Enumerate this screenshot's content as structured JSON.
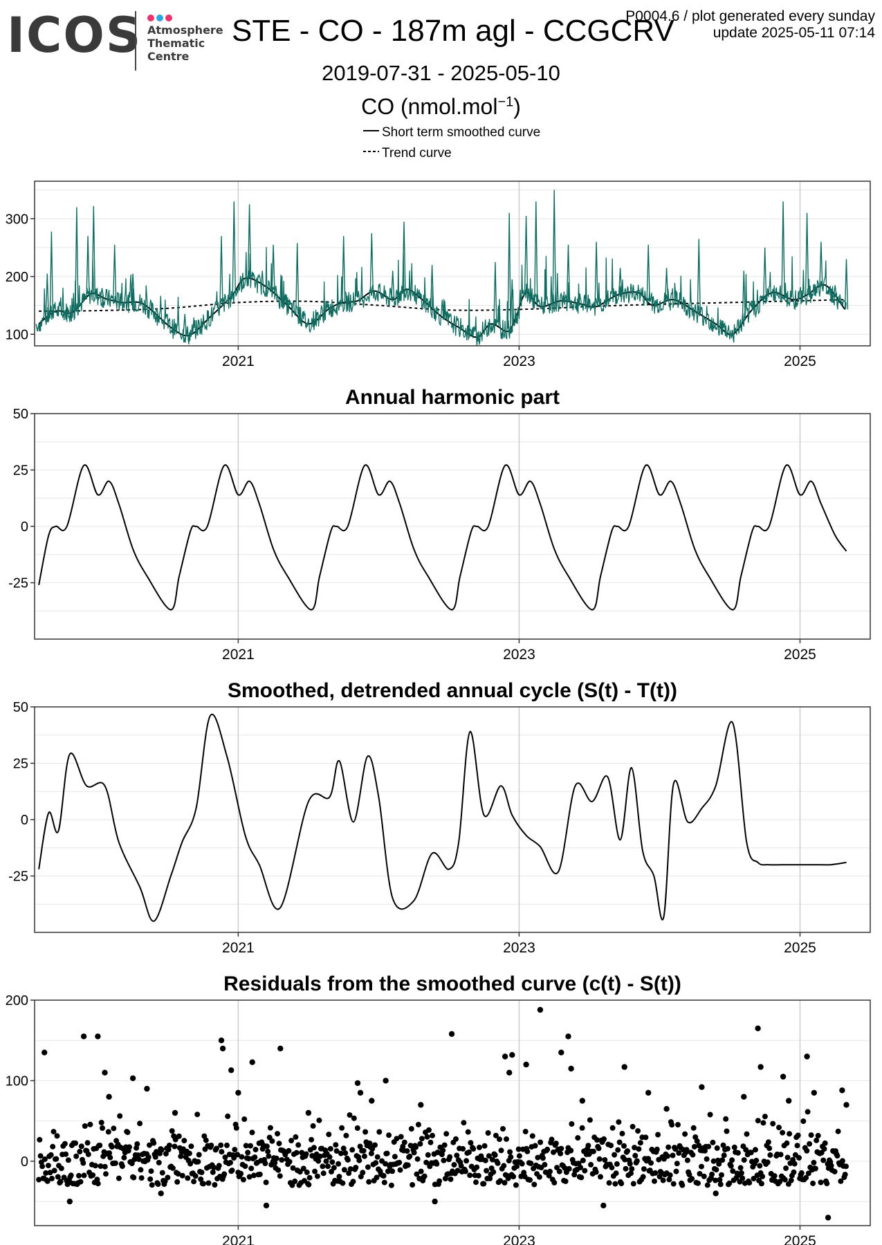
{
  "logo": {
    "word": "ICOS",
    "line1": "Atmosphere",
    "line2": "Thematic",
    "line3": "Centre",
    "dot_colors": [
      "#e8336d",
      "#2aa6e0",
      "#e8336d"
    ]
  },
  "header": {
    "title": "STE - CO - 187m agl - CCGCRV",
    "note_line1": "P0004.6 / plot generated every sunday",
    "note_line2": "update  2025-05-11 07:14",
    "date_range": "2019-07-31 - 2025-05-10",
    "unit_base": "CO (nmol.mol",
    "unit_exp": "−1",
    "unit_close": ")"
  },
  "legend": {
    "solid_label": "Short term smoothed curve",
    "dashed_label": "Trend curve"
  },
  "colors": {
    "observations": "#0e6b5f",
    "curves": "#000000",
    "grid": "#e6e6e6",
    "grid_major": "#cccccc",
    "frame": "#333333"
  },
  "chart_data": [
    {
      "type": "line",
      "title": "",
      "xlim": [
        2019.55,
        2025.5
      ],
      "ylim": [
        80,
        365
      ],
      "yticks": [
        100,
        200,
        300
      ],
      "ytick_labels": [
        "100",
        "200",
        "300"
      ],
      "xticks": [
        2021,
        2023,
        2025
      ],
      "xtick_labels": [
        "2021",
        "2023",
        "2025"
      ],
      "grid": true,
      "series": [
        {
          "name": "Short term smoothed curve",
          "style": "solid",
          "x": [
            2019.58,
            2019.7,
            2019.82,
            2019.95,
            2020.05,
            2020.17,
            2020.3,
            2020.4,
            2020.52,
            2020.65,
            2020.8,
            2020.95,
            2021.05,
            2021.2,
            2021.35,
            2021.5,
            2021.65,
            2021.75,
            2021.85,
            2021.97,
            2022.1,
            2022.2,
            2022.3,
            2022.45,
            2022.57,
            2022.7,
            2022.8,
            2022.92,
            2022.98,
            2023.05,
            2023.15,
            2023.3,
            2023.45,
            2023.55,
            2023.7,
            2023.85,
            2023.95,
            2024.1,
            2024.25,
            2024.4,
            2024.52,
            2024.65,
            2024.8,
            2024.95,
            2025.05,
            2025.18,
            2025.32
          ],
          "y": [
            118,
            140,
            138,
            170,
            162,
            155,
            155,
            138,
            112,
            98,
            130,
            165,
            197,
            182,
            150,
            118,
            145,
            155,
            158,
            175,
            160,
            178,
            162,
            130,
            112,
            95,
            118,
            105,
            132,
            172,
            148,
            158,
            152,
            148,
            168,
            172,
            150,
            160,
            140,
            118,
            100,
            140,
            172,
            160,
            168,
            185,
            143
          ]
        },
        {
          "name": "Trend curve",
          "style": "dashed",
          "x": [
            2019.58,
            2020.0,
            2020.5,
            2021.0,
            2021.5,
            2022.0,
            2022.5,
            2023.0,
            2023.5,
            2024.0,
            2024.5,
            2025.0,
            2025.32
          ],
          "y": [
            140,
            141,
            145,
            155,
            157,
            150,
            142,
            143,
            148,
            152,
            155,
            158,
            160
          ]
        },
        {
          "name": "",
          "style": "observations",
          "x": [
            2019.57,
            2019.64,
            2019.67,
            2019.75,
            2019.85,
            2019.93,
            2019.97,
            2020.03,
            2020.12,
            2020.25,
            2020.42,
            2020.62,
            2020.88,
            2020.97,
            2021.03,
            2021.08,
            2021.25,
            2021.42,
            2021.55,
            2021.75,
            2021.95,
            2022.1,
            2022.18,
            2022.38,
            2022.47,
            2022.65,
            2022.83,
            2022.93,
            2022.95,
            2023.05,
            2023.12,
            2023.25,
            2023.35,
            2023.55,
            2023.72,
            2023.92,
            2024.05,
            2024.28,
            2024.6,
            2024.75,
            2024.88,
            2025.05,
            2025.15,
            2025.25,
            2025.33
          ],
          "y": [
            105,
            205,
            278,
            130,
            320,
            270,
            322,
            180,
            255,
            205,
            145,
            135,
            270,
            330,
            178,
            325,
            255,
            258,
            120,
            270,
            275,
            210,
            295,
            220,
            158,
            98,
            225,
            310,
            195,
            305,
            330,
            350,
            255,
            260,
            215,
            255,
            215,
            265,
            210,
            250,
            330,
            310,
            260,
            185,
            230
          ]
        }
      ]
    },
    {
      "type": "line",
      "title": "Annual harmonic part",
      "xlim": [
        2019.55,
        2025.5
      ],
      "ylim": [
        -50,
        50
      ],
      "yticks": [
        -25,
        0,
        25,
        50
      ],
      "ytick_labels": [
        "-25",
        "0",
        "25",
        "50"
      ],
      "xticks": [
        2021,
        2023,
        2025
      ],
      "xtick_labels": [
        "2021",
        "2023",
        "2025"
      ],
      "grid": true,
      "series": [
        {
          "name": "",
          "style": "solid",
          "x": [
            2019.58,
            2019.65,
            2019.7,
            2019.78,
            2019.9,
            2020.0,
            2020.08,
            2020.15,
            2020.25,
            2020.35,
            2020.52,
            2020.58,
            2020.66,
            2020.7,
            2020.78,
            2020.9,
            2021.0,
            2021.08,
            2021.15,
            2021.25,
            2021.35,
            2021.52,
            2021.58,
            2021.66,
            2021.7,
            2021.78,
            2021.9,
            2022.0,
            2022.08,
            2022.15,
            2022.25,
            2022.35,
            2022.52,
            2022.58,
            2022.66,
            2022.7,
            2022.78,
            2022.9,
            2023.0,
            2023.08,
            2023.15,
            2023.25,
            2023.35,
            2023.52,
            2023.58,
            2023.66,
            2023.7,
            2023.78,
            2023.9,
            2024.0,
            2024.08,
            2024.15,
            2024.25,
            2024.35,
            2024.52,
            2024.58,
            2024.66,
            2024.7,
            2024.78,
            2024.9,
            2025.0,
            2025.08,
            2025.15,
            2025.25,
            2025.33
          ],
          "y": [
            -26,
            -4,
            0,
            0,
            27,
            14,
            20,
            10,
            -10,
            -22,
            -37,
            -22,
            -2,
            0,
            0,
            27,
            14,
            20,
            10,
            -10,
            -22,
            -37,
            -22,
            -2,
            0,
            0,
            27,
            14,
            20,
            10,
            -10,
            -22,
            -37,
            -22,
            -2,
            0,
            0,
            27,
            14,
            20,
            10,
            -10,
            -22,
            -37,
            -22,
            -2,
            0,
            0,
            27,
            14,
            20,
            10,
            -10,
            -22,
            -37,
            -22,
            -2,
            0,
            0,
            27,
            14,
            20,
            10,
            -4,
            -11
          ]
        }
      ]
    },
    {
      "type": "line",
      "title": "Smoothed, detrended annual cycle (S(t) - T(t))",
      "xlim": [
        2019.55,
        2025.5
      ],
      "ylim": [
        -50,
        50
      ],
      "yticks": [
        -25,
        0,
        25,
        50
      ],
      "ytick_labels": [
        "-25",
        "0",
        "25",
        "50"
      ],
      "xticks": [
        2021,
        2023,
        2025
      ],
      "xtick_labels": [
        "2021",
        "2023",
        "2025"
      ],
      "grid": true,
      "series": [
        {
          "name": "",
          "style": "solid",
          "x": [
            2019.58,
            2019.65,
            2019.72,
            2019.8,
            2019.92,
            2020.05,
            2020.15,
            2020.3,
            2020.4,
            2020.52,
            2020.6,
            2020.7,
            2020.8,
            2020.92,
            2021.05,
            2021.15,
            2021.3,
            2021.5,
            2021.65,
            2021.72,
            2021.82,
            2021.92,
            2022.0,
            2022.1,
            2022.25,
            2022.38,
            2022.5,
            2022.57,
            2022.65,
            2022.75,
            2022.87,
            2022.95,
            2023.05,
            2023.15,
            2023.28,
            2023.4,
            2023.52,
            2023.63,
            2023.72,
            2023.8,
            2023.88,
            2023.96,
            2024.03,
            2024.1,
            2024.2,
            2024.3,
            2024.4,
            2024.52,
            2024.62,
            2024.7,
            2024.78,
            2024.9,
            2024.98,
            2025.05,
            2025.15,
            2025.22,
            2025.33
          ],
          "y": [
            -22,
            3,
            -5,
            29,
            15,
            15,
            -10,
            -30,
            -45,
            -25,
            -10,
            5,
            46,
            28,
            -7,
            -20,
            -39,
            8,
            10,
            26,
            -1,
            28,
            10,
            -35,
            -36,
            -15,
            -22,
            -10,
            39,
            2,
            15,
            2,
            -7,
            -12,
            -23,
            15,
            8,
            19,
            -9,
            23,
            -14,
            -25,
            -43,
            16,
            -1,
            5,
            15,
            43,
            -10,
            -19,
            -20,
            -20,
            -20,
            -20,
            -20,
            -20,
            -19
          ]
        }
      ]
    },
    {
      "type": "scatter",
      "title": "Residuals from the smoothed curve (c(t) - S(t))",
      "xlim": [
        2019.55,
        2025.5
      ],
      "ylim": [
        -80,
        200
      ],
      "yticks": [
        0,
        100,
        200
      ],
      "ytick_labels": [
        "0",
        "100",
        "200"
      ],
      "xticks": [
        2021,
        2023,
        2025
      ],
      "xtick_labels": [
        "2021",
        "2023",
        "2025"
      ],
      "grid": true,
      "series": [
        {
          "name": "",
          "style": "points",
          "x": [
            2019.62,
            2019.9,
            2020.0,
            2020.05,
            2020.08,
            2020.25,
            2020.35,
            2020.55,
            2020.88,
            2020.89,
            2020.95,
            2021.0,
            2021.1,
            2021.3,
            2021.5,
            2021.85,
            2021.87,
            2021.95,
            2022.05,
            2022.3,
            2022.52,
            2022.9,
            2022.93,
            2022.95,
            2023.05,
            2023.15,
            2023.3,
            2023.35,
            2023.37,
            2023.45,
            2023.75,
            2023.92,
            2024.05,
            2024.3,
            2024.6,
            2024.7,
            2024.72,
            2024.88,
            2024.92,
            2025.05,
            2025.1,
            2025.3,
            2025.33,
            2019.8,
            2020.45,
            2021.2,
            2022.4,
            2023.6,
            2024.4,
            2025.2
          ],
          "y": [
            135,
            155,
            155,
            110,
            80,
            103,
            90,
            60,
            150,
            140,
            113,
            85,
            123,
            140,
            60,
            97,
            85,
            75,
            100,
            70,
            158,
            130,
            110,
            132,
            120,
            188,
            135,
            155,
            115,
            75,
            117,
            85,
            65,
            92,
            80,
            165,
            117,
            105,
            75,
            130,
            85,
            88,
            70,
            -50,
            -40,
            -55,
            -50,
            -55,
            -40,
            -70
          ]
        }
      ]
    }
  ]
}
